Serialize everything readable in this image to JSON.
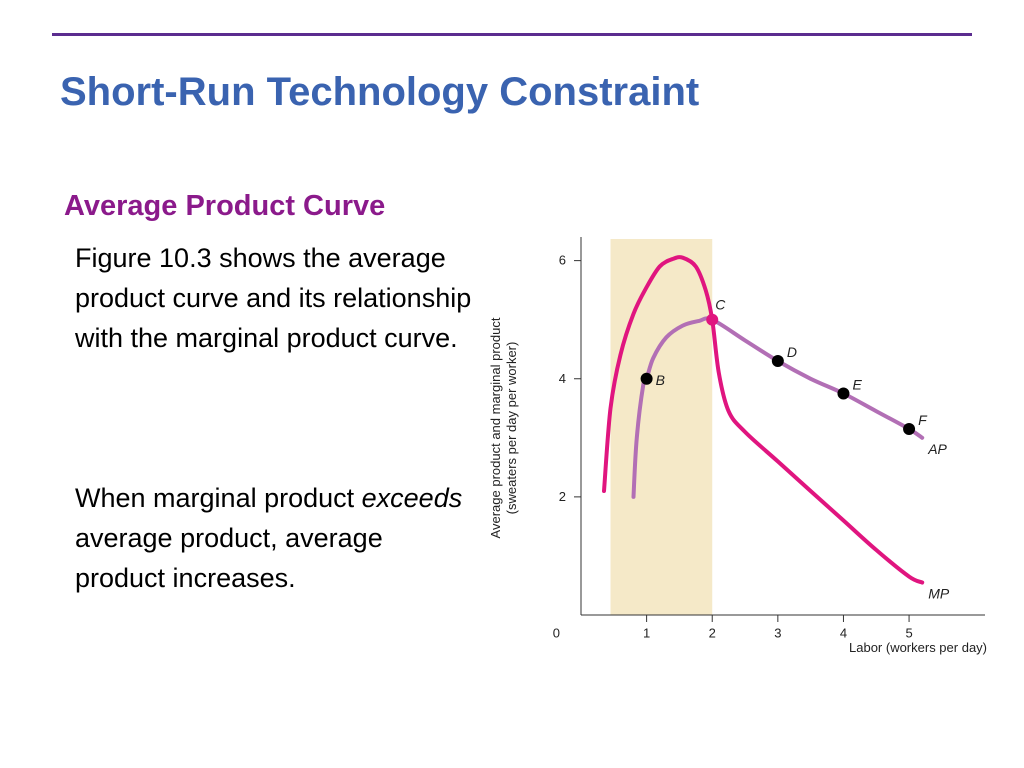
{
  "slide": {
    "title": "Short-Run Technology Constraint",
    "section_heading": "Average Product Curve",
    "paragraph_1": "Figure 10.3 shows the average product curve and its relationship with the marginal product curve.",
    "paragraph_2": {
      "before": "When marginal product ",
      "emphasis": "exceeds",
      "after": " average product, average product increases."
    }
  },
  "colors": {
    "rule": "#5b2c8f",
    "title": "#3a63b0",
    "heading": "#8b1a8b",
    "ap_curve": "#b26fb5",
    "mp_curve": "#e0157f",
    "shaded_region": "#f5e9c8",
    "point": "#000000"
  },
  "chart_data": {
    "type": "line",
    "xlabel": "Labor (workers per day)",
    "ylabel": "Average product and marginal product (sweaters per day per worker)",
    "origin_label": "0",
    "xlim": [
      0,
      5.7
    ],
    "ylim": [
      0,
      6.4
    ],
    "x_ticks": [
      1,
      2,
      3,
      4,
      5
    ],
    "y_ticks": [
      2,
      4,
      6
    ],
    "shaded_x_range": [
      0.45,
      2
    ],
    "series": [
      {
        "name": "AP",
        "color": "#b26fb5",
        "x": [
          0.8,
          0.85,
          0.95,
          1.0,
          1.1,
          1.3,
          1.55,
          1.8,
          2.0,
          2.5,
          3.0,
          3.5,
          4.0,
          4.5,
          5.0,
          5.2
        ],
        "y": [
          2.0,
          3.0,
          3.9,
          4.0,
          4.35,
          4.7,
          4.9,
          4.98,
          5.0,
          4.65,
          4.3,
          4.0,
          3.75,
          3.45,
          3.15,
          3.0
        ]
      },
      {
        "name": "MP",
        "color": "#e0157f",
        "x": [
          0.35,
          0.45,
          0.6,
          0.8,
          1.0,
          1.2,
          1.4,
          1.55,
          1.75,
          1.9,
          2.0,
          2.1,
          2.25,
          2.5,
          3.0,
          3.5,
          4.0,
          4.5,
          5.0,
          5.2
        ],
        "y": [
          2.1,
          3.5,
          4.4,
          5.1,
          5.55,
          5.9,
          6.03,
          6.05,
          5.9,
          5.5,
          5.0,
          4.1,
          3.45,
          3.1,
          2.6,
          2.1,
          1.6,
          1.1,
          0.65,
          0.55
        ]
      }
    ],
    "points": [
      {
        "label": "B",
        "x": 1,
        "y": 4.0
      },
      {
        "label": "C",
        "x": 2,
        "y": 5.0
      },
      {
        "label": "D",
        "x": 3,
        "y": 4.3
      },
      {
        "label": "E",
        "x": 4,
        "y": 3.75
      },
      {
        "label": "F",
        "x": 5,
        "y": 3.15
      }
    ]
  }
}
